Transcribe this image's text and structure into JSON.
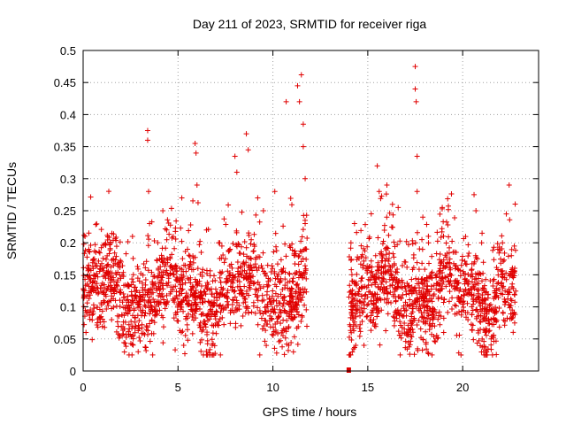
{
  "chart_data": {
    "type": "scatter",
    "title": "Day 211 of 2023, SRMTID for receiver riga",
    "xlabel": "GPS time / hours",
    "ylabel": "SRMTID / TECUs",
    "xlim": [
      0,
      24
    ],
    "ylim": [
      0,
      0.5
    ],
    "x_ticks": [
      0,
      5,
      10,
      15,
      20
    ],
    "x_tick_labels": [
      "0",
      "5",
      "10",
      "15",
      "20"
    ],
    "y_ticks": [
      0,
      0.05,
      0.1,
      0.15,
      0.2,
      0.25,
      0.3,
      0.35,
      0.4,
      0.45,
      0.5
    ],
    "y_tick_labels": [
      "0",
      "0.05",
      "0.1",
      "0.15",
      "0.2",
      "0.25",
      "0.3",
      "0.35",
      "0.4",
      "0.45",
      "0.5"
    ],
    "grid": true,
    "marker": "plus",
    "color": "#e00000",
    "gap_marker": {
      "x": 14.0,
      "y": 0.0
    },
    "series": [
      {
        "name": "SRMTID",
        "segments": [
          {
            "x_start": 0.0,
            "x_end": 11.8,
            "n": 1400
          },
          {
            "x_start": 14.0,
            "x_end": 22.8,
            "n": 1100
          }
        ],
        "points": [
          {
            "x": 0.1,
            "y": 0.21
          },
          {
            "x": 0.15,
            "y": 0.06
          },
          {
            "x": 0.3,
            "y": 0.19
          },
          {
            "x": 1.0,
            "y": 0.16
          },
          {
            "x": 1.5,
            "y": 0.08
          },
          {
            "x": 2.0,
            "y": 0.17
          },
          {
            "x": 2.6,
            "y": 0.21
          },
          {
            "x": 2.9,
            "y": 0.03
          },
          {
            "x": 3.4,
            "y": 0.375
          },
          {
            "x": 3.4,
            "y": 0.36
          },
          {
            "x": 3.45,
            "y": 0.28
          },
          {
            "x": 3.5,
            "y": 0.23
          },
          {
            "x": 4.2,
            "y": 0.25
          },
          {
            "x": 5.2,
            "y": 0.27
          },
          {
            "x": 5.3,
            "y": 0.04
          },
          {
            "x": 5.5,
            "y": 0.19
          },
          {
            "x": 5.9,
            "y": 0.355
          },
          {
            "x": 5.95,
            "y": 0.34
          },
          {
            "x": 6.0,
            "y": 0.29
          },
          {
            "x": 6.5,
            "y": 0.22
          },
          {
            "x": 6.8,
            "y": 0.04
          },
          {
            "x": 7.2,
            "y": 0.2
          },
          {
            "x": 8.0,
            "y": 0.335
          },
          {
            "x": 8.1,
            "y": 0.31
          },
          {
            "x": 8.6,
            "y": 0.37
          },
          {
            "x": 8.7,
            "y": 0.345
          },
          {
            "x": 9.2,
            "y": 0.27
          },
          {
            "x": 9.5,
            "y": 0.25
          },
          {
            "x": 10.1,
            "y": 0.28
          },
          {
            "x": 10.7,
            "y": 0.42
          },
          {
            "x": 11.3,
            "y": 0.445
          },
          {
            "x": 11.4,
            "y": 0.42
          },
          {
            "x": 11.5,
            "y": 0.462
          },
          {
            "x": 11.6,
            "y": 0.385
          },
          {
            "x": 11.6,
            "y": 0.35
          },
          {
            "x": 11.7,
            "y": 0.3
          },
          {
            "x": 11.7,
            "y": 0.23
          },
          {
            "x": 14.3,
            "y": 0.23
          },
          {
            "x": 14.8,
            "y": 0.04
          },
          {
            "x": 15.5,
            "y": 0.32
          },
          {
            "x": 15.6,
            "y": 0.28
          },
          {
            "x": 16.0,
            "y": 0.24
          },
          {
            "x": 16.3,
            "y": 0.26
          },
          {
            "x": 16.6,
            "y": 0.255
          },
          {
            "x": 17.5,
            "y": 0.475
          },
          {
            "x": 17.5,
            "y": 0.44
          },
          {
            "x": 17.55,
            "y": 0.42
          },
          {
            "x": 17.6,
            "y": 0.335
          },
          {
            "x": 17.6,
            "y": 0.28
          },
          {
            "x": 17.9,
            "y": 0.24
          },
          {
            "x": 18.2,
            "y": 0.2
          },
          {
            "x": 19.0,
            "y": 0.06
          },
          {
            "x": 20.6,
            "y": 0.275
          },
          {
            "x": 20.7,
            "y": 0.25
          },
          {
            "x": 21.0,
            "y": 0.2
          },
          {
            "x": 21.5,
            "y": 0.05
          },
          {
            "x": 22.3,
            "y": 0.245
          },
          {
            "x": 22.5,
            "y": 0.15
          }
        ]
      }
    ]
  }
}
